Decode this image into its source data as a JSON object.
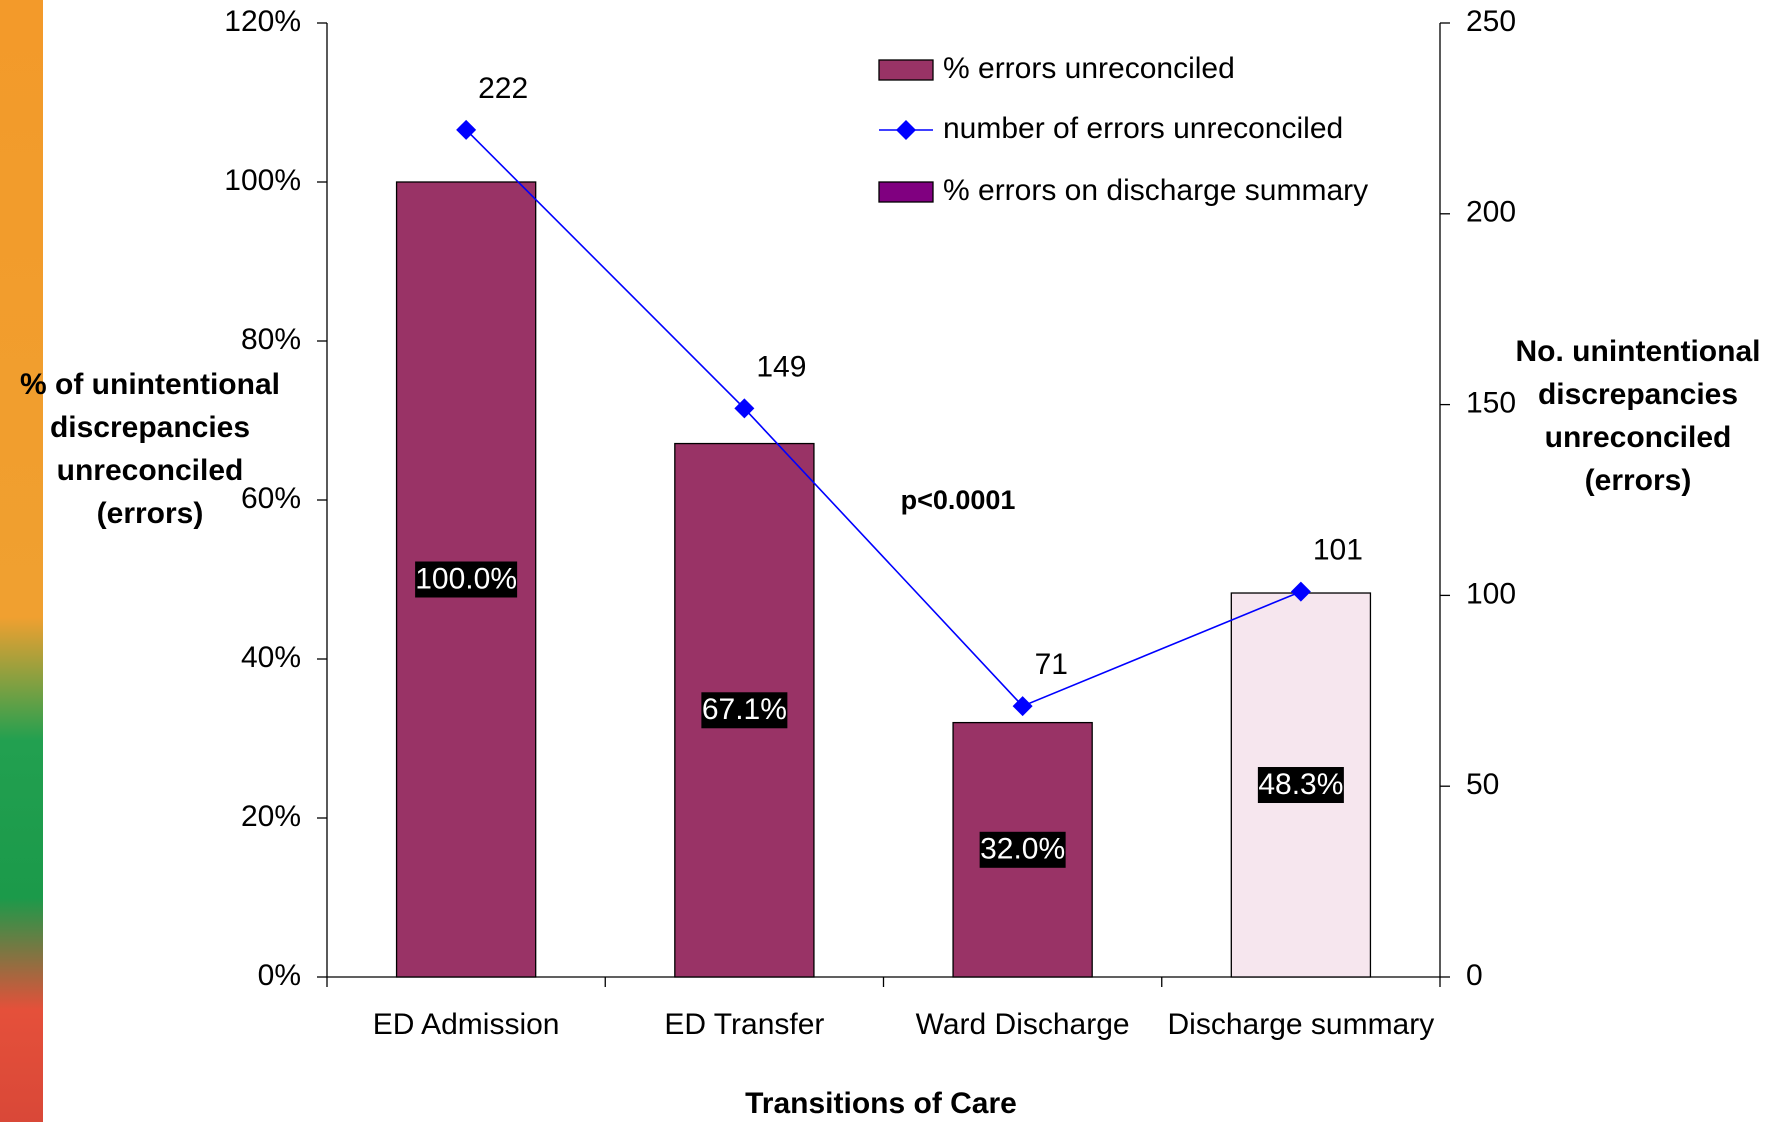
{
  "chart_data": {
    "type": "bar_line",
    "xlabel": "Transitions of Care",
    "ylabel": [
      "% of unintentional",
      "discrepancies",
      "unreconciled",
      "(errors)"
    ],
    "y2label": [
      "No. unintentional",
      "discrepancies",
      "unreconciled",
      "(errors)"
    ],
    "annotation": "p<0.0001",
    "categories": [
      "ED Admission",
      "ED Transfer",
      "Ward Discharge",
      "Discharge summary"
    ],
    "series": [
      {
        "name": "% errors unreconciled",
        "type": "bar",
        "color": "#993366",
        "values": [
          100.0,
          67.1,
          32.0,
          null
        ],
        "value_labels": [
          "100.0%",
          "67.1%",
          "32.0%",
          null
        ]
      },
      {
        "name": "number of errors unreconciled",
        "type": "line",
        "axis": "y2",
        "color": "#0000ff",
        "values": [
          222,
          149,
          71,
          101
        ]
      },
      {
        "name": "% errors on discharge summary",
        "type": "bar",
        "color": "#800080",
        "bar_color": "#f6e6ee",
        "values": [
          null,
          null,
          null,
          48.3
        ],
        "value_labels": [
          null,
          null,
          null,
          "48.3%"
        ]
      }
    ],
    "ylim": [
      0,
      120
    ],
    "yticks": [
      {
        "value": 0,
        "label": "0%"
      },
      {
        "value": 20,
        "label": "20%"
      },
      {
        "value": 40,
        "label": "40%"
      },
      {
        "value": 60,
        "label": "60%"
      },
      {
        "value": 80,
        "label": "80%"
      },
      {
        "value": 100,
        "label": "100%"
      },
      {
        "value": 120,
        "label": "120%"
      }
    ],
    "y2lim": [
      0,
      250
    ],
    "y2ticks": [
      0,
      50,
      100,
      150,
      200,
      250
    ]
  }
}
